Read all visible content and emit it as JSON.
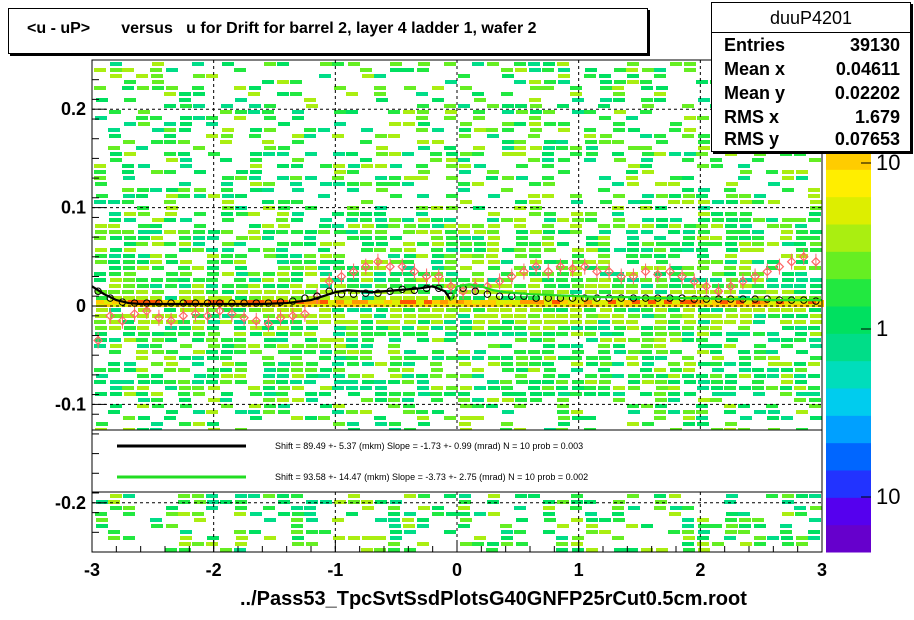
{
  "title": "<u - uP>       versus   u for Drift for barrel 2, layer 4 ladder 1, wafer 2",
  "x_axis_title": "../Pass53_TpcSvtSsdPlotsG40GNFP25rCut0.5cm.root",
  "stats": {
    "name": "duuP4201",
    "rows": [
      {
        "label": "Entries",
        "value": "39130"
      },
      {
        "label": "Mean x",
        "value": "0.04611"
      },
      {
        "label": "Mean y",
        "value": "0.02202"
      },
      {
        "label": "RMS x",
        "value": "1.679"
      },
      {
        "label": "RMS y",
        "value": "0.07653"
      }
    ]
  },
  "legend": [
    {
      "color": "#000000",
      "text": "Shift =    89.49 +- 5.37 (mkm) Slope =    -1.73 +- 0.99 (mrad)  N = 10 prob = 0.003"
    },
    {
      "color": "#22dd22",
      "text": "Shift =    93.58 +- 14.47 (mkm) Slope =    -3.73 +- 2.75 (mrad)  N = 10 prob = 0.002"
    }
  ],
  "colors": {
    "palette": [
      "#6600cc",
      "#5500ee",
      "#2233ff",
      "#0066ff",
      "#00a0ff",
      "#00ccee",
      "#00ddbb",
      "#00dd88",
      "#00e060",
      "#22e840",
      "#66ee22",
      "#aaee11",
      "#ddee00",
      "#ffee00",
      "#ffcc00",
      "#ff9900",
      "#ff5500",
      "#ff2200"
    ],
    "profile_markers": "#ff6666",
    "fit_black": "#000000",
    "fit_green": "#22dd22"
  },
  "chart_data": {
    "type": "heatmap",
    "xlim": [
      -3,
      3
    ],
    "ylim": [
      -0.25,
      0.25
    ],
    "x_ticks": [
      -3,
      -2,
      -1,
      0,
      1,
      2,
      3
    ],
    "y_ticks": [
      -0.2,
      -0.1,
      0,
      0.1,
      0.2
    ],
    "x_tick_labels": [
      "-3",
      "-2",
      "-1",
      "0",
      "1",
      "2",
      "3"
    ],
    "y_tick_labels": [
      "-0.2",
      "-0.1",
      "0",
      "0.1",
      "0.2"
    ],
    "grid": true,
    "z_scale": "log",
    "colorbar_labels": [
      "10",
      "1",
      "10"
    ],
    "profile_mean": {
      "x": [
        -2.95,
        -2.85,
        -2.75,
        -2.65,
        -2.55,
        -2.45,
        -2.35,
        -2.25,
        -2.15,
        -2.05,
        -1.95,
        -1.85,
        -1.75,
        -1.65,
        -1.55,
        -1.45,
        -1.35,
        -1.25,
        -1.15,
        -1.05,
        -0.95,
        -0.85,
        -0.75,
        -0.65,
        -0.55,
        -0.45,
        -0.35,
        -0.25,
        -0.15,
        -0.05,
        0.05,
        0.15,
        0.25,
        0.35,
        0.45,
        0.55,
        0.65,
        0.75,
        0.85,
        0.95,
        1.05,
        1.15,
        1.25,
        1.35,
        1.45,
        1.55,
        1.65,
        1.75,
        1.85,
        1.95,
        2.05,
        2.15,
        2.25,
        2.35,
        2.45,
        2.55,
        2.65,
        2.75,
        2.85,
        2.95
      ],
      "y": [
        -0.035,
        -0.01,
        -0.015,
        -0.008,
        -0.005,
        -0.012,
        -0.015,
        -0.01,
        -0.008,
        -0.01,
        -0.005,
        -0.008,
        -0.012,
        -0.015,
        -0.018,
        -0.012,
        -0.01,
        -0.008,
        0.01,
        0.025,
        0.03,
        0.035,
        0.04,
        0.045,
        0.04,
        0.04,
        0.035,
        0.03,
        0.03,
        0.02,
        0.015,
        0.02,
        0.02,
        0.025,
        0.03,
        0.035,
        0.04,
        0.035,
        0.04,
        0.038,
        0.04,
        0.035,
        0.035,
        0.03,
        0.03,
        0.035,
        0.032,
        0.035,
        0.03,
        0.025,
        0.02,
        0.015,
        0.02,
        0.025,
        0.03,
        0.035,
        0.04,
        0.045,
        0.05,
        0.045
      ]
    },
    "profile_fit": {
      "x": [
        -2.95,
        -2.85,
        -2.75,
        -2.65,
        -2.55,
        -2.45,
        -2.35,
        -2.25,
        -2.15,
        -2.05,
        -1.95,
        -1.85,
        -1.75,
        -1.65,
        -1.55,
        -1.45,
        -1.35,
        -1.25,
        -1.15,
        -1.05,
        -0.95,
        -0.85,
        -0.75,
        -0.65,
        -0.55,
        -0.45,
        -0.35,
        -0.25,
        -0.15,
        -0.05,
        0.05,
        0.15,
        0.25,
        0.35,
        0.45,
        0.55,
        0.65,
        0.75,
        0.85,
        0.95,
        1.05,
        1.15,
        1.25,
        1.35,
        1.45,
        1.55,
        1.65,
        1.75,
        1.85,
        1.95,
        2.05,
        2.15,
        2.25,
        2.35,
        2.45,
        2.55,
        2.65,
        2.75,
        2.85,
        2.95
      ],
      "y": [
        0.015,
        0.008,
        0.004,
        0.003,
        0.003,
        0.003,
        0.003,
        0.003,
        0.003,
        0.003,
        0.003,
        0.003,
        0.003,
        0.003,
        0.003,
        0.004,
        0.005,
        0.008,
        0.01,
        0.015,
        0.012,
        0.012,
        0.013,
        0.013,
        0.015,
        0.017,
        0.016,
        0.018,
        0.018,
        0.01,
        0.018,
        0.015,
        0.012,
        0.01,
        0.01,
        0.01,
        0.008,
        0.008,
        0.008,
        0.008,
        0.008,
        0.008,
        0.008,
        0.008,
        0.008,
        0.008,
        0.008,
        0.008,
        0.008,
        0.007,
        0.007,
        0.007,
        0.007,
        0.007,
        0.007,
        0.007,
        0.006,
        0.006,
        0.006,
        0.005
      ]
    },
    "fit_line_black": {
      "x": [
        -3.0,
        -2.9,
        -2.8,
        -2.7,
        -2.6,
        -2.4,
        -2.2,
        -2.0,
        -1.8,
        -1.6,
        -1.4,
        -1.2,
        -1.1,
        -1.0,
        -0.9,
        -0.8,
        -0.7,
        -0.6,
        -0.5,
        -0.4,
        -0.3,
        -0.2,
        -0.1,
        -0.05
      ],
      "y": [
        0.02,
        0.012,
        0.006,
        0.003,
        0.002,
        0.002,
        0.002,
        0.002,
        0.002,
        0.002,
        0.003,
        0.006,
        0.01,
        0.014,
        0.016,
        0.015,
        0.014,
        0.015,
        0.016,
        0.017,
        0.018,
        0.02,
        0.015,
        0.006
      ]
    },
    "fit_line_green": {
      "x": [
        -0.05,
        0.0,
        0.1,
        0.2,
        0.3,
        0.4,
        0.5,
        0.6,
        0.8,
        1.0,
        1.2,
        1.4,
        1.6,
        1.8,
        2.0,
        2.2,
        2.4,
        2.6,
        2.8,
        3.0
      ],
      "y": [
        0.006,
        0.02,
        0.022,
        0.02,
        0.016,
        0.014,
        0.013,
        0.012,
        0.011,
        0.01,
        0.009,
        0.009,
        0.008,
        0.008,
        0.008,
        0.007,
        0.007,
        0.006,
        0.006,
        0.006
      ]
    }
  }
}
